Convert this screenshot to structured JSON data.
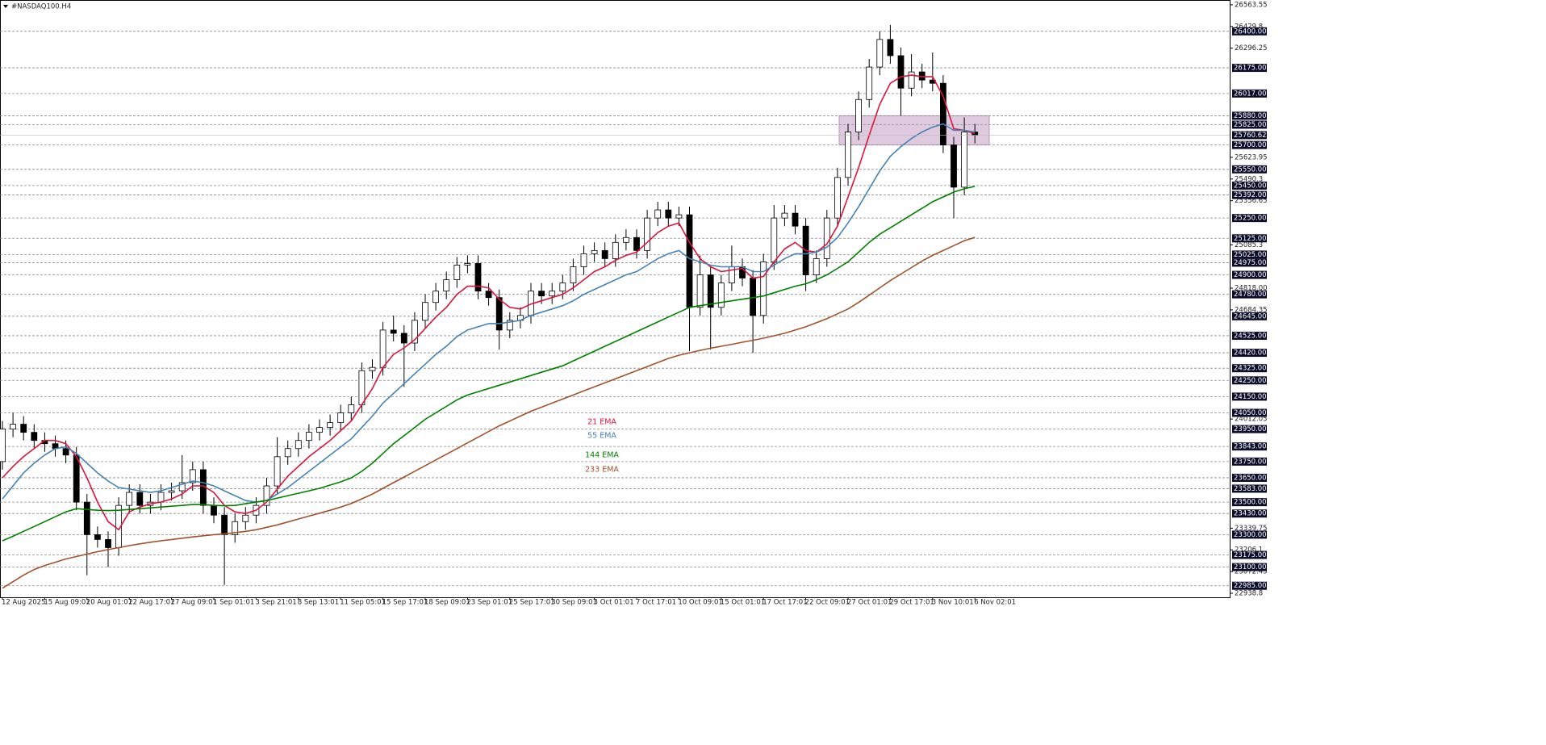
{
  "chart_data": {
    "type": "candlestick",
    "title": "#NASDAQ100.H4",
    "categories": [
      "12 Aug 2025",
      null,
      null,
      null,
      "15 Aug 09:01",
      null,
      null,
      null,
      "20 Aug 01:01",
      null,
      null,
      null,
      "22 Aug 17:01",
      null,
      null,
      null,
      "27 Aug 09:01",
      null,
      null,
      null,
      "1 Sep 01:01",
      null,
      null,
      null,
      "3 Sep 21:01",
      null,
      null,
      null,
      "8 Sep 13:01",
      null,
      null,
      null,
      "11 Sep 05:01",
      null,
      null,
      null,
      "15 Sep 17:01",
      null,
      null,
      null,
      "18 Sep 09:01",
      null,
      null,
      null,
      "23 Sep 01:01",
      null,
      null,
      null,
      "25 Sep 17:01",
      null,
      null,
      null,
      "30 Sep 09:01",
      null,
      null,
      null,
      "3 Oct 01:01",
      null,
      null,
      null,
      "7 Oct 17:01",
      null,
      null,
      null,
      "10 Oct 09:01",
      null,
      null,
      null,
      "15 Oct 01:01",
      null,
      null,
      null,
      "17 Oct 17:01",
      null,
      null,
      null,
      "22 Oct 09:01",
      null,
      null,
      null,
      "27 Oct 01:01",
      null,
      null,
      null,
      "29 Oct 17:01",
      null,
      null,
      null,
      "3 Nov 10:01",
      null,
      null,
      null,
      "6 Nov 02:01"
    ],
    "open": [
      23750,
      23950,
      23980,
      23930,
      23880,
      23860,
      23830,
      23790,
      23500,
      23300,
      23270,
      23220,
      23480,
      23560,
      23480,
      23500,
      23560,
      23570,
      23620,
      23700,
      23480,
      23420,
      23300,
      23380,
      23420,
      23480,
      23600,
      23780,
      23830,
      23880,
      23930,
      23960,
      23990,
      24050,
      24100,
      24310,
      24330,
      24560,
      24540,
      24480,
      24620,
      24730,
      24800,
      24870,
      24960,
      24970,
      24800,
      24760,
      24560,
      24620,
      24650,
      24800,
      24770,
      24800,
      24850,
      24950,
      25030,
      25050,
      25000,
      25100,
      25130,
      25050,
      25250,
      25300,
      25250,
      25270,
      24700,
      24900,
      24700,
      24850,
      24950,
      24880,
      24650,
      24980,
      25250,
      25280,
      25200,
      24900,
      25000,
      25250,
      25500,
      25780,
      25980,
      26180,
      26350,
      26250,
      26050,
      26150,
      26100,
      26080,
      25700,
      25440,
      25780
    ],
    "high": [
      24000,
      24050,
      24030,
      23980,
      23930,
      23910,
      23880,
      23840,
      23550,
      23350,
      23320,
      23530,
      23610,
      23610,
      23550,
      23610,
      23620,
      23790,
      23750,
      23750,
      23530,
      23470,
      23430,
      23470,
      23530,
      23650,
      23900,
      23880,
      23930,
      23980,
      24010,
      24040,
      24100,
      24150,
      24360,
      24380,
      24610,
      24650,
      24590,
      24670,
      24780,
      24850,
      24920,
      25010,
      25020,
      25020,
      24850,
      24810,
      24670,
      24700,
      24850,
      24850,
      24850,
      24900,
      25000,
      25080,
      25100,
      25100,
      25150,
      25180,
      25180,
      25300,
      25350,
      25350,
      25320,
      25320,
      25020,
      24950,
      24900,
      25080,
      25000,
      24930,
      25030,
      25330,
      25330,
      25330,
      25250,
      25050,
      25300,
      25560,
      25830,
      26030,
      26230,
      26400,
      26440,
      26300,
      26260,
      26200,
      26270,
      26130,
      25750,
      25870,
      25830
    ],
    "low": [
      23700,
      23900,
      23880,
      23830,
      23810,
      23780,
      23740,
      23450,
      23050,
      23220,
      23100,
      23170,
      23430,
      23430,
      23430,
      23450,
      23510,
      23520,
      23570,
      23430,
      23370,
      22990,
      23250,
      23330,
      23370,
      23430,
      23550,
      23730,
      23780,
      23830,
      23880,
      23910,
      23940,
      24000,
      24050,
      24260,
      24280,
      24490,
      24210,
      24430,
      24570,
      24680,
      24750,
      24820,
      24910,
      24750,
      24710,
      24440,
      24510,
      24570,
      24600,
      24720,
      24720,
      24750,
      24800,
      24900,
      24980,
      24950,
      24950,
      25050,
      25000,
      25000,
      25200,
      25200,
      25200,
      24430,
      24650,
      24440,
      24650,
      24800,
      24830,
      24420,
      24600,
      24930,
      25200,
      25150,
      24800,
      24850,
      24950,
      25200,
      25450,
      25730,
      25930,
      26130,
      26200,
      25880,
      26000,
      26050,
      26030,
      25650,
      25250,
      25390,
      25710
    ],
    "close": [
      23950,
      23980,
      23930,
      23880,
      23860,
      23830,
      23790,
      23500,
      23300,
      23270,
      23220,
      23480,
      23560,
      23480,
      23500,
      23560,
      23570,
      23620,
      23700,
      23480,
      23420,
      23300,
      23380,
      23420,
      23480,
      23600,
      23780,
      23830,
      23880,
      23930,
      23960,
      23990,
      24050,
      24100,
      24310,
      24330,
      24560,
      24540,
      24480,
      24620,
      24730,
      24800,
      24870,
      24960,
      24970,
      24800,
      24760,
      24560,
      24620,
      24650,
      24800,
      24770,
      24800,
      24850,
      24950,
      25030,
      25050,
      25000,
      25100,
      25130,
      25050,
      25250,
      25300,
      25250,
      25270,
      24700,
      24900,
      24700,
      24850,
      24950,
      24880,
      24650,
      24980,
      25250,
      25280,
      25200,
      24900,
      25000,
      25250,
      25500,
      25780,
      25980,
      26180,
      26350,
      26250,
      26050,
      26150,
      26100,
      26080,
      25700,
      25440,
      25780,
      25760
    ],
    "series": [
      {
        "name": "21 EMA",
        "color": "#dc143c",
        "values": [
          23650,
          23720,
          23780,
          23830,
          23880,
          23880,
          23860,
          23780,
          23650,
          23500,
          23380,
          23330,
          23440,
          23470,
          23490,
          23500,
          23520,
          23550,
          23600,
          23600,
          23560,
          23480,
          23440,
          23430,
          23450,
          23500,
          23580,
          23660,
          23720,
          23780,
          23830,
          23880,
          23940,
          24000,
          24100,
          24200,
          24330,
          24410,
          24450,
          24500,
          24570,
          24640,
          24700,
          24780,
          24830,
          24830,
          24820,
          24750,
          24700,
          24690,
          24720,
          24740,
          24760,
          24780,
          24820,
          24870,
          24920,
          24950,
          24990,
          25020,
          25040,
          25100,
          25160,
          25200,
          25220,
          25100,
          25000,
          24950,
          24920,
          24930,
          24940,
          24880,
          24890,
          24980,
          25060,
          25100,
          25050,
          25040,
          25090,
          25200,
          25380,
          25560,
          25760,
          25950,
          26080,
          26120,
          26130,
          26120,
          26120,
          26000,
          25800,
          25790,
          25770
        ]
      },
      {
        "name": "55 EMA",
        "color": "#4682b4",
        "values": [
          23520,
          23600,
          23680,
          23740,
          23790,
          23830,
          23840,
          23800,
          23740,
          23680,
          23630,
          23590,
          23580,
          23570,
          23560,
          23570,
          23590,
          23610,
          23630,
          23620,
          23600,
          23570,
          23540,
          23510,
          23500,
          23510,
          23550,
          23590,
          23640,
          23690,
          23740,
          23790,
          23840,
          23890,
          23960,
          24030,
          24110,
          24170,
          24230,
          24290,
          24350,
          24410,
          24460,
          24520,
          24560,
          24580,
          24600,
          24600,
          24610,
          24620,
          24650,
          24670,
          24690,
          24710,
          24740,
          24780,
          24810,
          24840,
          24870,
          24900,
          24920,
          24960,
          25000,
          25030,
          25050,
          25000,
          24980,
          24960,
          24950,
          24950,
          24950,
          24920,
          24920,
          24960,
          25000,
          25030,
          25030,
          25040,
          25070,
          25130,
          25220,
          25320,
          25430,
          25540,
          25630,
          25690,
          25740,
          25780,
          25810,
          25830,
          25790,
          25790,
          25780
        ]
      },
      {
        "name": "144 EMA",
        "color": "#008000",
        "values": [
          23262,
          23290,
          23320,
          23350,
          23380,
          23410,
          23440,
          23460,
          23455,
          23450,
          23448,
          23450,
          23455,
          23460,
          23465,
          23470,
          23475,
          23480,
          23485,
          23485,
          23480,
          23478,
          23480,
          23490,
          23500,
          23510,
          23525,
          23540,
          23555,
          23570,
          23585,
          23605,
          23625,
          23650,
          23690,
          23740,
          23800,
          23860,
          23910,
          23960,
          24010,
          24050,
          24090,
          24130,
          24160,
          24180,
          24200,
          24220,
          24240,
          24260,
          24280,
          24300,
          24320,
          24340,
          24370,
          24400,
          24430,
          24460,
          24490,
          24520,
          24550,
          24580,
          24610,
          24640,
          24670,
          24700,
          24710,
          24720,
          24730,
          24740,
          24750,
          24760,
          24770,
          24790,
          24810,
          24830,
          24845,
          24870,
          24900,
          24940,
          24980,
          25040,
          25100,
          25150,
          25190,
          25230,
          25270,
          25310,
          25350,
          25380,
          25410,
          25430,
          25445
        ]
      },
      {
        "name": "233 EMA",
        "color": "#a0522d",
        "values": [
          22970,
          23010,
          23050,
          23085,
          23110,
          23130,
          23150,
          23165,
          23180,
          23195,
          23208,
          23220,
          23232,
          23243,
          23253,
          23262,
          23270,
          23278,
          23286,
          23293,
          23300,
          23305,
          23312,
          23320,
          23330,
          23345,
          23360,
          23378,
          23396,
          23414,
          23432,
          23450,
          23470,
          23492,
          23520,
          23550,
          23585,
          23620,
          23655,
          23690,
          23725,
          23760,
          23795,
          23830,
          23865,
          23900,
          23935,
          23970,
          24000,
          24030,
          24060,
          24085,
          24110,
          24135,
          24160,
          24185,
          24210,
          24235,
          24260,
          24285,
          24310,
          24335,
          24360,
          24385,
          24405,
          24420,
          24435,
          24448,
          24460,
          24472,
          24485,
          24497,
          24510,
          24525,
          24540,
          24560,
          24580,
          24605,
          24630,
          24660,
          24690,
          24730,
          24775,
          24820,
          24865,
          24905,
          24945,
          24985,
          25020,
          25050,
          25080,
          25110,
          25131
        ]
      }
    ],
    "ylim": [
      22914,
      26593
    ],
    "yticks": [
      26563.55,
      26429.8,
      26296.25,
      25623.95,
      25490.3,
      25356.65,
      25085.3,
      {
        "value": 24818,
        "label": "24818.00"
      },
      24684.35,
      24012.05,
      23339.75,
      23206.1,
      23072.45,
      22938.8
    ],
    "levels": [
      {
        "value": 26400,
        "label": "26400.00"
      },
      {
        "value": 26175,
        "label": "26175.00"
      },
      {
        "value": 26017,
        "label": "26017.00"
      },
      {
        "value": 25880,
        "label": "25880.00"
      },
      {
        "value": 25825,
        "label": "25825.00"
      },
      {
        "value": 25700,
        "label": "25700.00"
      },
      {
        "value": 25550,
        "label": "25550.00"
      },
      {
        "value": 25450,
        "label": "25450.00"
      },
      {
        "value": 25392,
        "label": "25392.00"
      },
      {
        "value": 25250,
        "label": "25250.00"
      },
      {
        "value": 25125,
        "label": "25125.00"
      },
      {
        "value": 25025,
        "label": "25025.00"
      },
      {
        "value": 24975,
        "label": "24975.00"
      },
      {
        "value": 24900,
        "label": "24900.00"
      },
      {
        "value": 24780,
        "label": "24780.00"
      },
      {
        "value": 24645,
        "label": "24645.00"
      },
      {
        "value": 24525,
        "label": "24525.00"
      },
      {
        "value": 24420,
        "label": "24420.00"
      },
      {
        "value": 24325,
        "label": "24325.00"
      },
      {
        "value": 24250,
        "label": "24250.00"
      },
      {
        "value": 24150,
        "label": "24150.00"
      },
      {
        "value": 24050,
        "label": "24050.00"
      },
      {
        "value": 23950,
        "label": "23950.00"
      },
      {
        "value": 23843,
        "label": "23843.00"
      },
      {
        "value": 23750,
        "label": "23750.00"
      },
      {
        "value": 23650,
        "label": "23650.00"
      },
      {
        "value": 23583,
        "label": "23583.00"
      },
      {
        "value": 23500,
        "label": "23500.00"
      },
      {
        "value": 23430,
        "label": "23430.00"
      },
      {
        "value": 23300,
        "label": "23300.00"
      },
      {
        "value": 23175,
        "label": "23175.00"
      },
      {
        "value": 23100,
        "label": "23100.00"
      },
      {
        "value": 22985,
        "label": "22985.00"
      }
    ],
    "current_price": 25760.62,
    "zone": {
      "from": 25700,
      "to": 25880,
      "color": "#d8bfd8"
    },
    "up_color": "#ffffff",
    "down_color": "#000000"
  }
}
